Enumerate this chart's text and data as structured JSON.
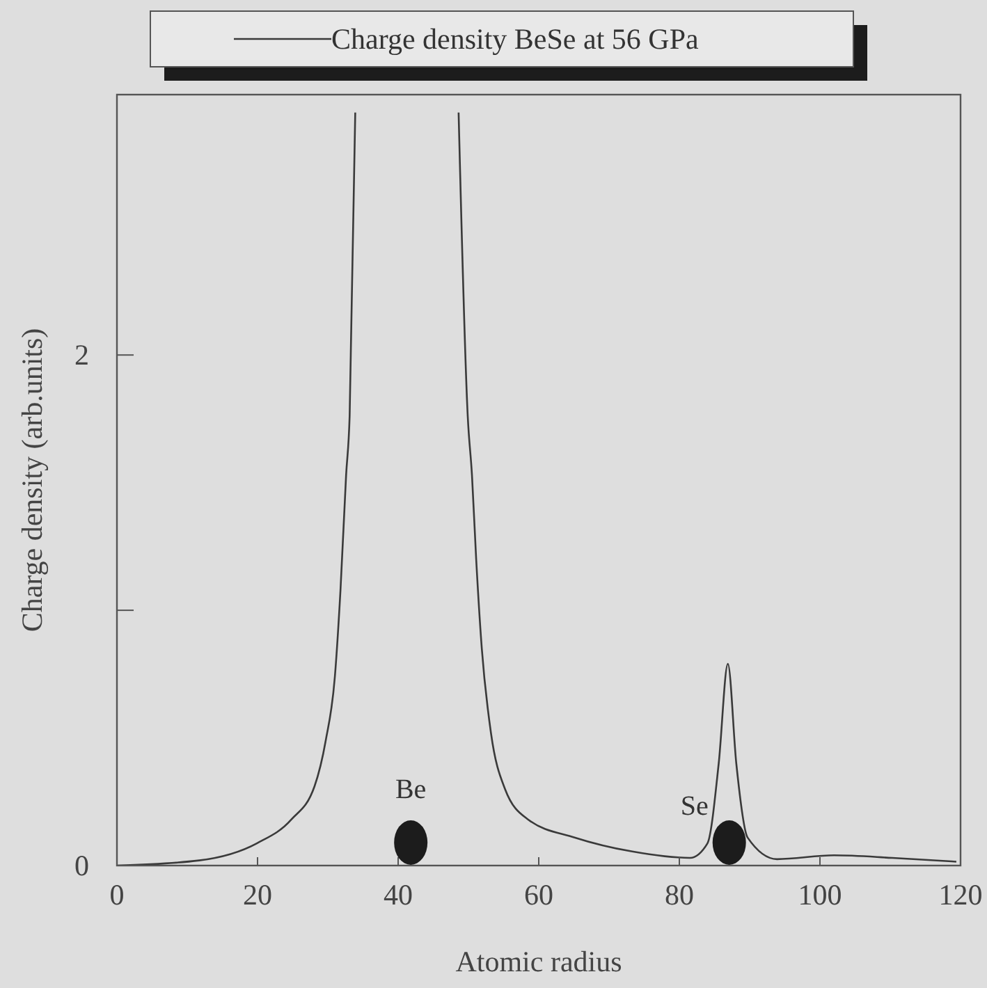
{
  "chart_data": {
    "type": "line",
    "xlabel": "Atomic radius",
    "ylabel": "Charge density (arb.units)",
    "xlim": [
      0,
      120
    ],
    "xticks": [
      0,
      20,
      40,
      60,
      80,
      100,
      120
    ],
    "ylim": [
      0,
      3.02
    ],
    "yticks": [
      0,
      {
        "value": 1,
        "label": null
      },
      2
    ],
    "legend": "top",
    "grid": false,
    "marker": "none",
    "line_style": "solid",
    "series": [
      {
        "name": "Charge density BeSe at 56 GPa",
        "color": "#3a3a3a",
        "x": [
          0,
          11.7,
          19.9,
          24.8,
          28.1,
          29.7,
          31.0,
          31.8,
          32.6,
          33.1,
          33.9,
          41,
          48.6,
          49.9,
          50.5,
          51.1,
          51.9,
          53.2,
          55.2,
          58.5,
          65.1,
          73.3,
          81.5,
          84,
          85.6,
          86.9,
          88.1,
          89.7,
          93.9,
          102,
          110.3,
          119.4
        ],
        "values": [
          0,
          0.02,
          0.087,
          0.18,
          0.31,
          0.49,
          0.74,
          1.08,
          1.53,
          1.76,
          2.95,
          null,
          2.95,
          1.76,
          1.53,
          1.2,
          0.85,
          0.52,
          0.3,
          0.18,
          0.11,
          0.055,
          0.03,
          0.087,
          0.4,
          0.79,
          0.4,
          0.11,
          0.025,
          0.04,
          0.03,
          0.015
        ]
      }
    ],
    "annotations": [
      {
        "text": "Be",
        "x": 41.8,
        "y": 0.09
      },
      {
        "text": "Se",
        "x": 87.1,
        "y": 0.09
      }
    ]
  }
}
